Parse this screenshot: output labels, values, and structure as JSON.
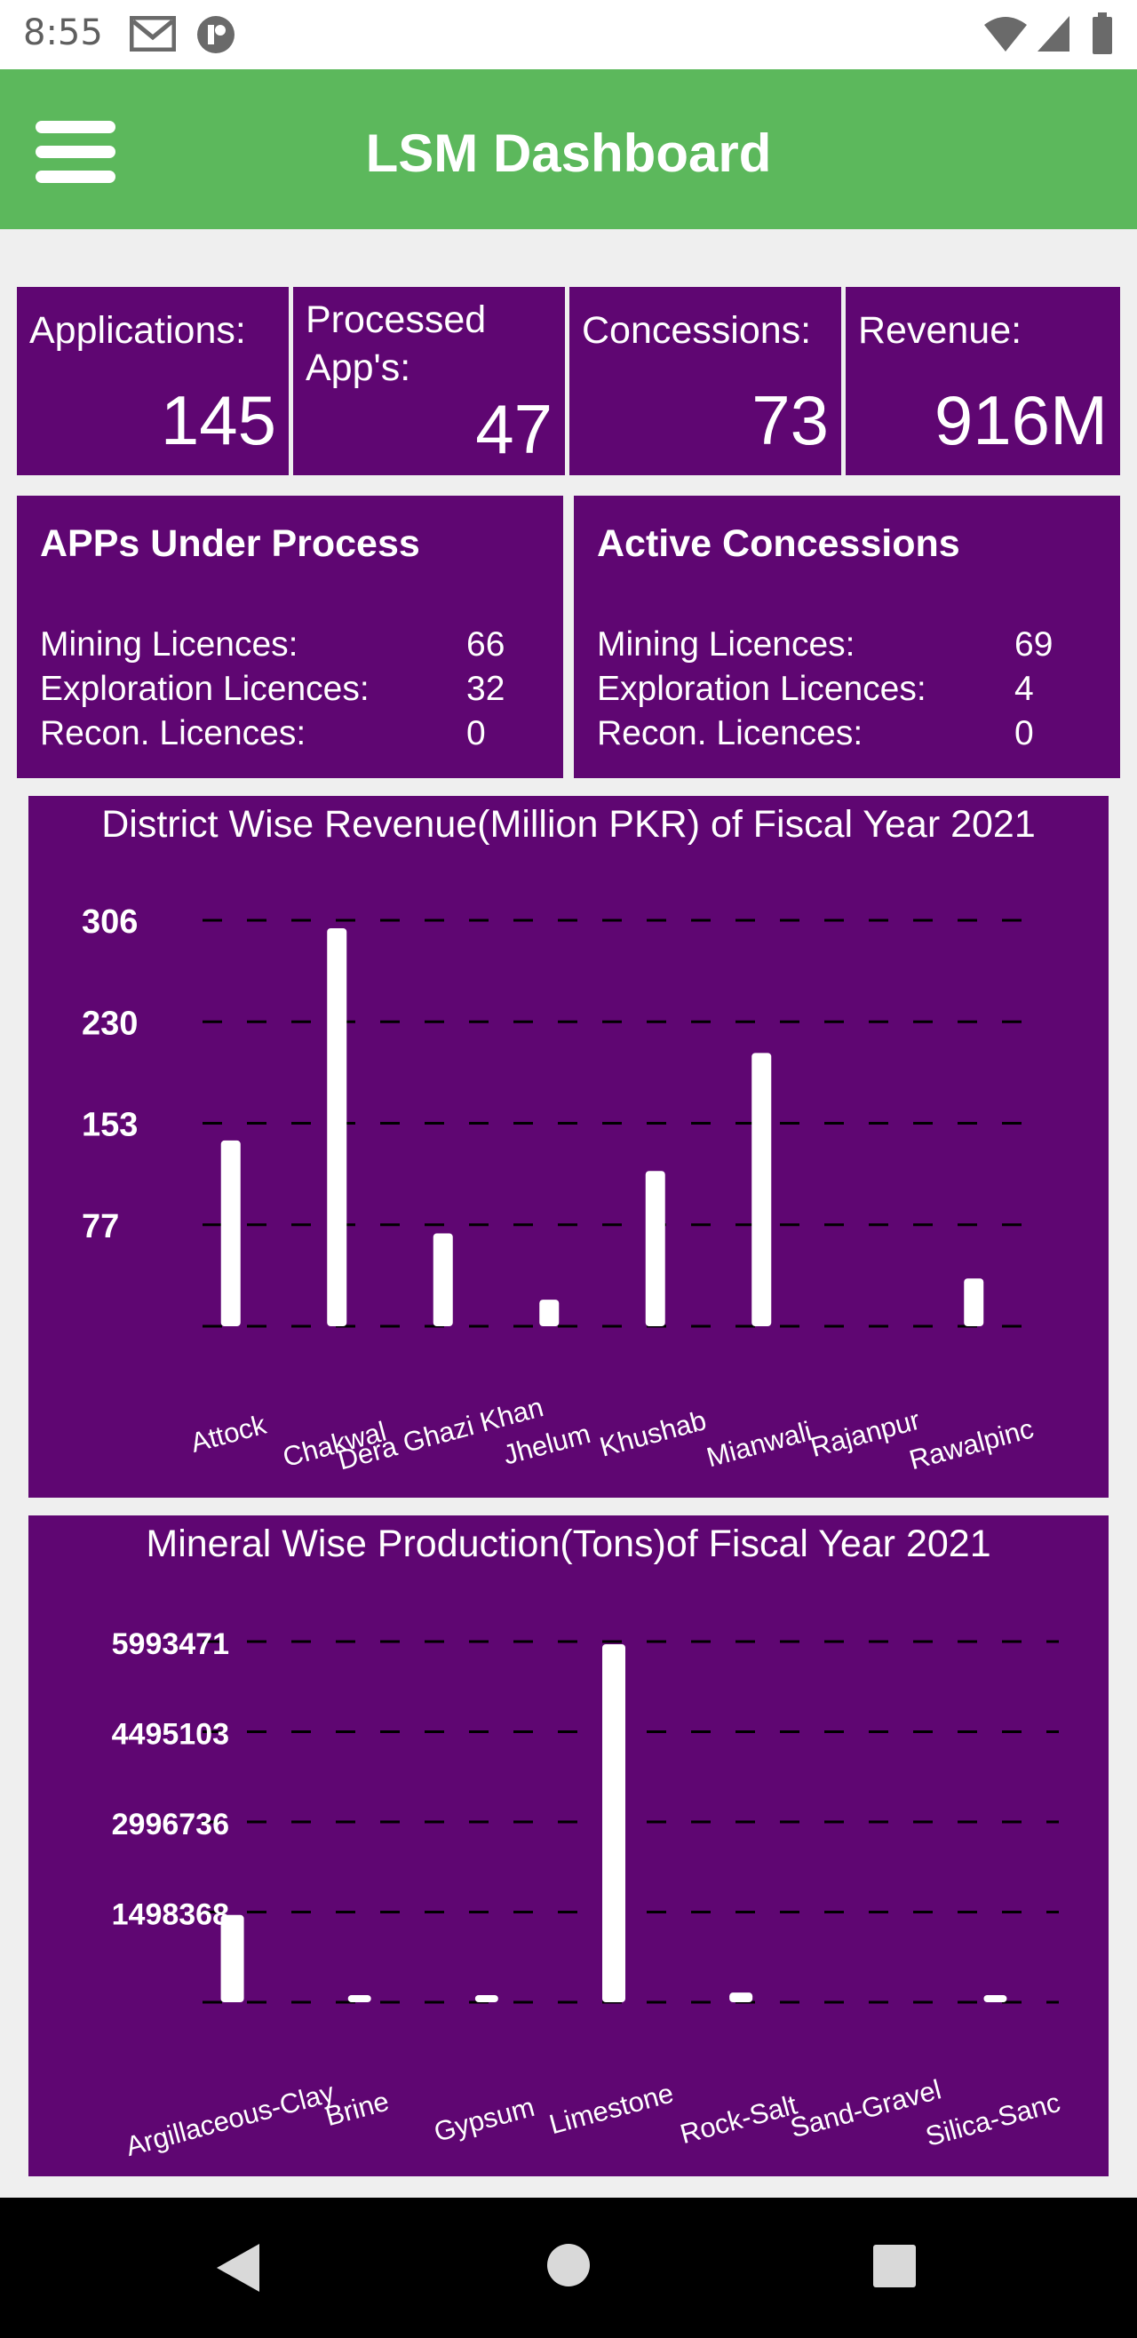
{
  "status_bar": {
    "time": "8:55"
  },
  "app_bar": {
    "title": "LSM Dashboard"
  },
  "stats": [
    {
      "label": "Applications:",
      "value": "145"
    },
    {
      "label": "Processed App's:",
      "value": "47"
    },
    {
      "label": "Concessions:",
      "value": "73"
    },
    {
      "label": "Revenue:",
      "value": "916M"
    }
  ],
  "panels": {
    "under_process": {
      "title": "APPs Under Process",
      "rows": [
        {
          "label": "Mining Licences:",
          "value": "66"
        },
        {
          "label": "Exploration Licences:",
          "value": "32"
        },
        {
          "label": "Recon. Licences:",
          "value": "0"
        }
      ]
    },
    "active": {
      "title": "Active Concessions",
      "rows": [
        {
          "label": "Mining Licences:",
          "value": "69"
        },
        {
          "label": "Exploration Licences:",
          "value": "4"
        },
        {
          "label": "Recon. Licences:",
          "value": "0"
        }
      ]
    }
  },
  "colors": {
    "app_bar": "#5cb85c",
    "card": "#5f0672",
    "text": "#ffffff",
    "background": "#efefef"
  },
  "icons": [
    "gmail-icon",
    "app-badge-icon",
    "wifi-icon",
    "signal-icon",
    "battery-icon",
    "menu-icon",
    "back-icon",
    "home-icon",
    "recents-icon"
  ],
  "chart_data": [
    {
      "type": "bar",
      "title": "District Wise Revenue(Million PKR) of Fiscal Year 2021",
      "categories": [
        "Attock",
        "Chakwal",
        "Dera Ghazi Khan",
        "Jhelum",
        "Khushab",
        "Mianwali",
        "Rajanpur",
        "Rawalpinc"
      ],
      "values": [
        140,
        300,
        70,
        20,
        117,
        206,
        0,
        36
      ],
      "yticks": [
        "77",
        "153",
        "230",
        "306"
      ],
      "ylim": [
        0,
        306
      ],
      "grid": true
    },
    {
      "type": "bar",
      "title": "Mineral Wise Production(Tons)of Fiscal Year 2021",
      "categories": [
        "Argillaceous-Clay",
        "Brine",
        "Gypsum",
        "Limestone",
        "Rock-Salt",
        "Sand-Gravel",
        "Silica-Sanc"
      ],
      "values": [
        1450000,
        10000,
        60000,
        5950000,
        160000,
        0,
        5000
      ],
      "yticks": [
        "1498368",
        "2996736",
        "4495103",
        "5993471"
      ],
      "ylim": [
        0,
        5993471
      ],
      "grid": true
    }
  ]
}
